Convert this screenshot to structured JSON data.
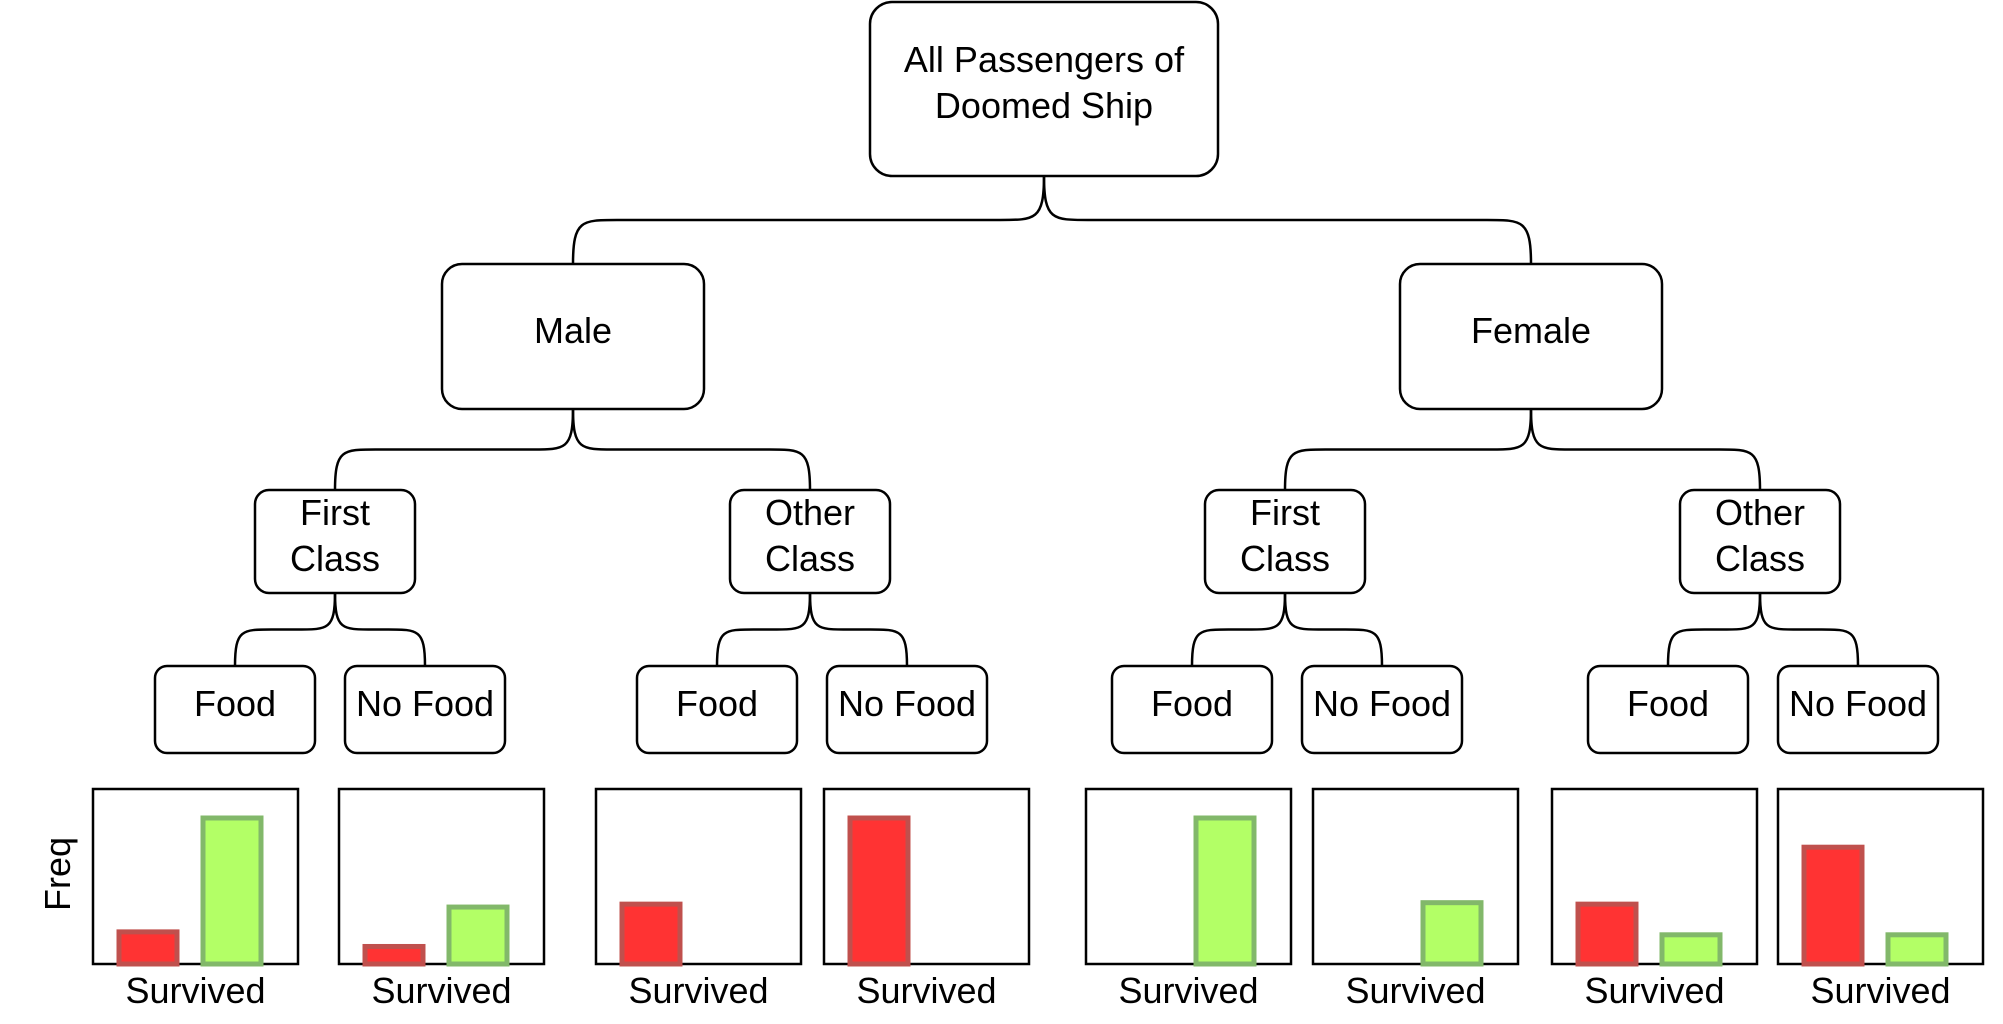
{
  "tree": {
    "root": {
      "lines": [
        "All Passengers of",
        "Doomed Ship"
      ]
    },
    "sex": [
      {
        "label": "Male"
      },
      {
        "label": "Female"
      }
    ],
    "class": [
      {
        "lines": [
          "First",
          "Class"
        ]
      },
      {
        "lines": [
          "Other",
          "Class"
        ]
      },
      {
        "lines": [
          "First",
          "Class"
        ]
      },
      {
        "lines": [
          "Other",
          "Class"
        ]
      }
    ],
    "food": [
      {
        "label": "Food"
      },
      {
        "label": "No Food"
      },
      {
        "label": "Food"
      },
      {
        "label": "No Food"
      },
      {
        "label": "Food"
      },
      {
        "label": "No Food"
      },
      {
        "label": "Food"
      },
      {
        "label": "No Food"
      }
    ]
  },
  "colors": {
    "not_survived_fill": "#ff3333",
    "not_survived_stroke": "#c0504d",
    "survived_fill": "#b3ff66",
    "survived_stroke": "#82b86a"
  },
  "chart_data": {
    "type": "bar",
    "ylabel": "Freq",
    "xlabel": "Survived",
    "note": "Eight small bar charts; relative frequency of not survived (red) vs survived (green) per leaf",
    "charts": [
      {
        "not_survived": 0.22,
        "survived": 1.0
      },
      {
        "not_survived": 0.12,
        "survived": 0.39
      },
      {
        "not_survived": 0.41,
        "survived": 0
      },
      {
        "not_survived": 1.0,
        "survived": 0
      },
      {
        "not_survived": 0,
        "survived": 1.0
      },
      {
        "not_survived": 0,
        "survived": 0.42
      },
      {
        "not_survived": 0.41,
        "survived": 0.2
      },
      {
        "not_survived": 0.8,
        "survived": 0.2
      }
    ]
  }
}
